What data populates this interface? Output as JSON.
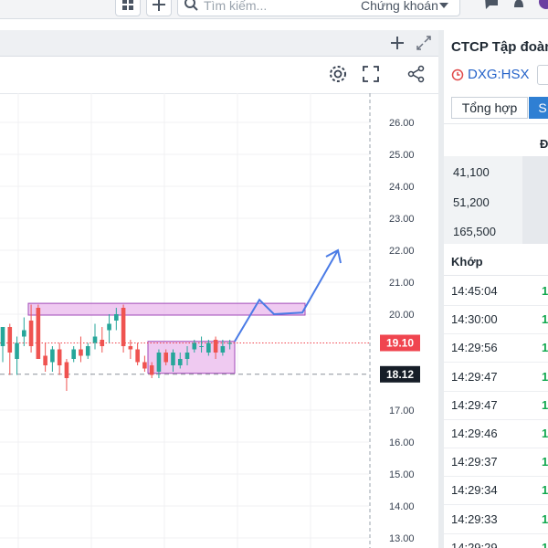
{
  "topbar": {
    "search_placeholder": "Tìm kiếm...",
    "search_category": "Chứng khoán"
  },
  "chart": {
    "y_ticks": [
      "26.00",
      "25.00",
      "24.00",
      "23.00",
      "22.00",
      "21.00",
      "20.00",
      "17.00",
      "16.00",
      "15.00",
      "14.00",
      "13.00"
    ],
    "last_price": "19.10",
    "crosshair_price": "18.12",
    "colors": {
      "up": "#26a69a",
      "down": "#ef5350",
      "highlight": "#e9b8ec",
      "arrow": "#4a7be6",
      "tag_red": "#f0454f",
      "tag_dark": "#161d27"
    }
  },
  "chart_data": {
    "type": "candlestick",
    "ylim": [
      12.8,
      27.2
    ],
    "candles": [
      {
        "o": 19.0,
        "h": 19.6,
        "l": 18.5,
        "c": 19.6
      },
      {
        "o": 19.6,
        "h": 19.7,
        "l": 18.1,
        "c": 18.8
      },
      {
        "o": 18.6,
        "h": 19.3,
        "l": 18.1,
        "c": 19.1
      },
      {
        "o": 19.3,
        "h": 19.9,
        "l": 19.0,
        "c": 19.5
      },
      {
        "o": 19.8,
        "h": 20.3,
        "l": 18.8,
        "c": 19.0
      },
      {
        "o": 20.2,
        "h": 20.3,
        "l": 18.6,
        "c": 18.6
      },
      {
        "o": 18.7,
        "h": 19.1,
        "l": 18.2,
        "c": 18.4
      },
      {
        "o": 18.5,
        "h": 19.0,
        "l": 18.2,
        "c": 18.9
      },
      {
        "o": 18.9,
        "h": 19.1,
        "l": 18.1,
        "c": 18.4
      },
      {
        "o": 18.5,
        "h": 18.6,
        "l": 17.6,
        "c": 18.0
      },
      {
        "o": 18.6,
        "h": 19.0,
        "l": 18.5,
        "c": 18.9
      },
      {
        "o": 18.9,
        "h": 19.3,
        "l": 18.5,
        "c": 18.7
      },
      {
        "o": 18.7,
        "h": 19.1,
        "l": 18.6,
        "c": 19.0
      },
      {
        "o": 19.1,
        "h": 19.7,
        "l": 18.9,
        "c": 19.3
      },
      {
        "o": 19.2,
        "h": 19.6,
        "l": 18.8,
        "c": 19.0
      },
      {
        "o": 19.5,
        "h": 20.0,
        "l": 19.1,
        "c": 19.7
      },
      {
        "o": 19.8,
        "h": 20.2,
        "l": 19.5,
        "c": 20.0
      },
      {
        "o": 20.2,
        "h": 20.3,
        "l": 18.8,
        "c": 19.0
      },
      {
        "o": 19.0,
        "h": 19.2,
        "l": 18.6,
        "c": 18.9
      },
      {
        "o": 18.9,
        "h": 19.1,
        "l": 18.4,
        "c": 18.5
      },
      {
        "o": 18.5,
        "h": 18.7,
        "l": 18.2,
        "c": 18.3
      },
      {
        "o": 18.4,
        "h": 18.5,
        "l": 18.0,
        "c": 18.1
      },
      {
        "o": 18.2,
        "h": 18.9,
        "l": 18.0,
        "c": 18.8
      },
      {
        "o": 18.8,
        "h": 18.9,
        "l": 18.4,
        "c": 18.5
      },
      {
        "o": 18.4,
        "h": 18.9,
        "l": 18.2,
        "c": 18.8
      },
      {
        "o": 18.4,
        "h": 18.8,
        "l": 18.3,
        "c": 18.6
      },
      {
        "o": 18.6,
        "h": 19.0,
        "l": 18.4,
        "c": 18.8
      },
      {
        "o": 18.9,
        "h": 19.2,
        "l": 18.8,
        "c": 19.1
      },
      {
        "o": 19.0,
        "h": 19.3,
        "l": 18.8,
        "c": 19.0
      },
      {
        "o": 18.8,
        "h": 19.2,
        "l": 18.7,
        "c": 19.1
      },
      {
        "o": 19.2,
        "h": 19.3,
        "l": 18.6,
        "c": 18.8
      },
      {
        "o": 18.8,
        "h": 19.2,
        "l": 18.7,
        "c": 19.0
      },
      {
        "o": 19.1,
        "h": 19.2,
        "l": 18.9,
        "c": 19.1
      }
    ]
  },
  "right_panel": {
    "title": "CTCP Tập đoàn",
    "symbol": "DXG:HSX",
    "tab1": "Tổng hợp",
    "tab2": "S",
    "col_header": "Đ",
    "summary": [
      "41,100",
      "51,200",
      "165,500"
    ],
    "matched_label": "Khớp",
    "times": [
      "14:45:04",
      "14:30:00",
      "14:29:56",
      "14:29:47",
      "14:29:47",
      "14:29:46",
      "14:29:37",
      "14:29:34",
      "14:29:33",
      "14:29:29"
    ],
    "price_stub": "1"
  }
}
